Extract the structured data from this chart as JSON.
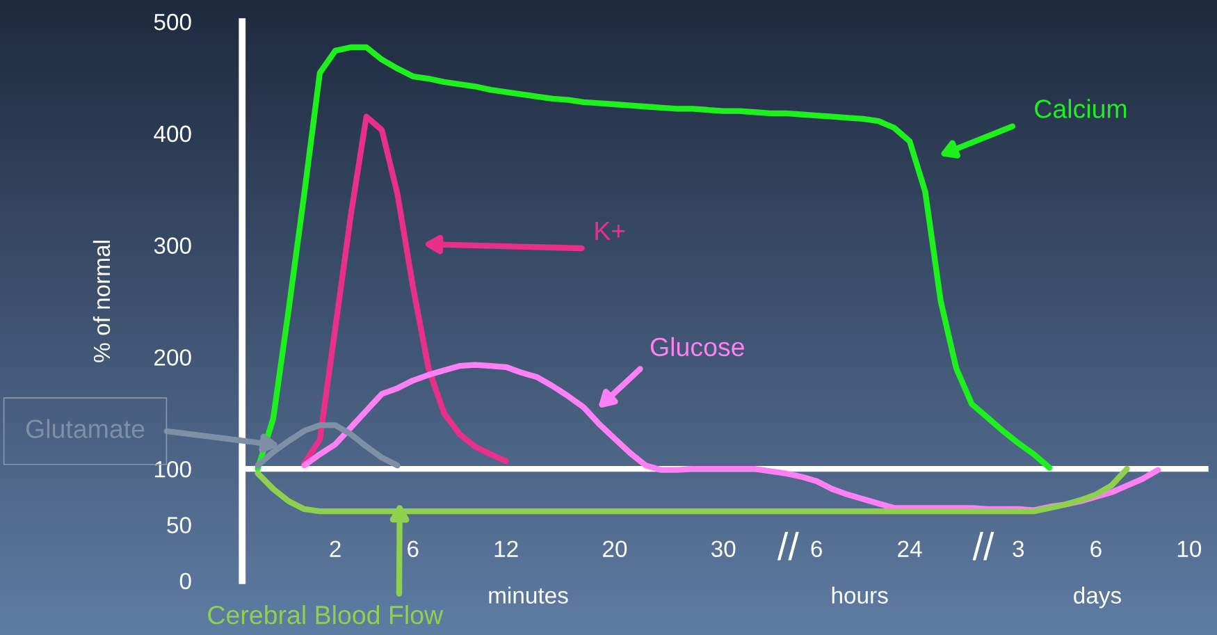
{
  "chart_data": {
    "type": "line",
    "ylabel": "% of normal",
    "line_style": "solid",
    "ylim": [
      0,
      500
    ],
    "yticks": [
      0,
      50,
      100,
      200,
      300,
      400,
      500
    ],
    "categories": [
      null,
      null,
      null,
      null,
      null,
      null,
      "2",
      null,
      null,
      null,
      null,
      "6",
      null,
      null,
      null,
      null,
      null,
      "12",
      null,
      null,
      null,
      null,
      null,
      null,
      "20",
      null,
      null,
      null,
      null,
      null,
      null,
      "30",
      null,
      null,
      null,
      null,
      null,
      "6",
      null,
      null,
      null,
      null,
      null,
      "24",
      null,
      null,
      null,
      null,
      null,
      null,
      "3",
      null,
      null,
      null,
      null,
      "6",
      null,
      null,
      null,
      null,
      null,
      "10",
      null
    ],
    "ref_lines": [
      {
        "axis": "y",
        "value": 100,
        "color": "#ffffff"
      }
    ],
    "annotations": [
      "//",
      "//",
      "minutes",
      "hours",
      "days"
    ],
    "series": [
      {
        "name": "Calcium",
        "color": "#1ef01e",
        "values": [
          null,
          100,
          145,
          243,
          346,
          454,
          474,
          477,
          477,
          466,
          458,
          451,
          449,
          446,
          444,
          442,
          439,
          437,
          435,
          433,
          431,
          430,
          428,
          427,
          426,
          425,
          424,
          423,
          422,
          422,
          421,
          420,
          420,
          419,
          418,
          418,
          417,
          416,
          415,
          414,
          413,
          411,
          405,
          393,
          348,
          250,
          190,
          158,
          146,
          134,
          123,
          113,
          101,
          null,
          null,
          null,
          null,
          null,
          null,
          null,
          null,
          null,
          null
        ]
      },
      {
        "name": "K+",
        "color": "#e8308a",
        "values": [
          null,
          null,
          null,
          null,
          105,
          126,
          226,
          327,
          415,
          403,
          346,
          263,
          190,
          150,
          131,
          120,
          113,
          107,
          null,
          null,
          null,
          null,
          null,
          null,
          null,
          null,
          null,
          null,
          null,
          null,
          null,
          null,
          null,
          null,
          null,
          null,
          null,
          null,
          null,
          null,
          null,
          null,
          null,
          null,
          null,
          null,
          null,
          null,
          null,
          null,
          null,
          null,
          null,
          null,
          null,
          null,
          null,
          null,
          null,
          null,
          null,
          null,
          null
        ]
      },
      {
        "name": "Glucose",
        "color": "#ff80f4",
        "values": [
          null,
          null,
          null,
          null,
          103,
          113,
          122,
          137,
          152,
          167,
          172,
          179,
          184,
          188,
          192,
          193,
          192,
          191,
          186,
          182,
          174,
          165,
          155,
          140,
          127,
          114,
          103,
          99,
          99,
          100,
          100,
          100,
          100,
          100,
          98,
          96,
          93,
          89,
          82,
          77,
          73,
          69,
          65,
          65,
          65,
          65,
          65,
          65,
          64,
          64,
          64,
          63,
          66,
          68,
          71,
          75,
          79,
          85,
          91,
          99,
          null,
          null,
          null
        ]
      },
      {
        "name": "Glutamate",
        "color": "#7d90a6",
        "values": [
          null,
          103,
          115,
          125,
          134,
          139,
          139,
          131,
          120,
          110,
          103,
          null,
          null,
          null,
          null,
          null,
          null,
          null,
          null,
          null,
          null,
          null,
          null,
          null,
          null,
          null,
          null,
          null,
          null,
          null,
          null,
          null,
          null,
          null,
          null,
          null,
          null,
          null,
          null,
          null,
          null,
          null,
          null,
          null,
          null,
          null,
          null,
          null,
          null,
          null,
          null,
          null,
          null,
          null,
          null,
          null,
          null,
          null,
          null,
          null,
          null,
          null,
          null
        ]
      },
      {
        "name": "Cerebral Blood Flow",
        "color": "#8fd14f",
        "values": [
          null,
          96,
          82,
          71,
          64,
          62,
          62,
          62,
          62,
          62,
          62,
          62,
          62,
          62,
          62,
          62,
          62,
          62,
          62,
          62,
          62,
          62,
          62,
          62,
          62,
          62,
          62,
          62,
          62,
          62,
          62,
          62,
          62,
          62,
          62,
          62,
          62,
          62,
          62,
          62,
          62,
          62,
          62,
          62,
          62,
          62,
          62,
          62,
          62,
          62,
          62,
          62,
          65,
          68,
          72,
          77,
          85,
          100,
          null,
          null,
          null,
          null,
          null
        ]
      }
    ]
  }
}
